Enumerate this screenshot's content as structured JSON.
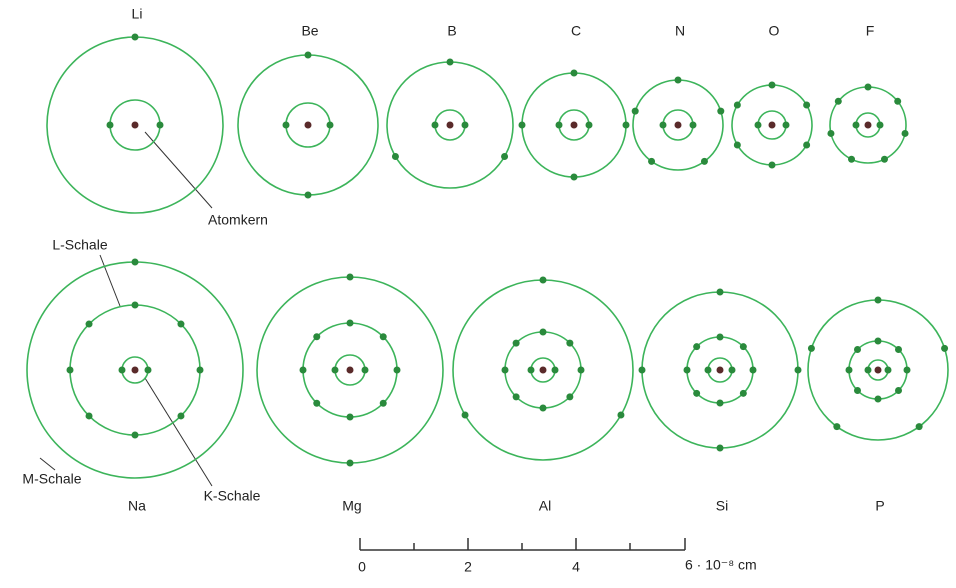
{
  "atoms": [
    {
      "label": "Li",
      "shells": [
        2,
        1
      ]
    },
    {
      "label": "Be",
      "shells": [
        2,
        2
      ]
    },
    {
      "label": "B",
      "shells": [
        2,
        3
      ]
    },
    {
      "label": "C",
      "shells": [
        2,
        4
      ]
    },
    {
      "label": "N",
      "shells": [
        2,
        5
      ]
    },
    {
      "label": "O",
      "shells": [
        2,
        6
      ]
    },
    {
      "label": "F",
      "shells": [
        2,
        7
      ]
    },
    {
      "label": "Na",
      "shells": [
        2,
        8,
        1
      ]
    },
    {
      "label": "Mg",
      "shells": [
        2,
        8,
        2
      ]
    },
    {
      "label": "Al",
      "shells": [
        2,
        8,
        3
      ]
    },
    {
      "label": "Si",
      "shells": [
        2,
        8,
        4
      ]
    },
    {
      "label": "P",
      "shells": [
        2,
        8,
        5
      ]
    }
  ],
  "annotations": {
    "nucleus": "Atomkern",
    "l_shell": "L-Schale",
    "k_shell": "K-Schale",
    "m_shell": "M-Schale"
  },
  "scale": {
    "labels": [
      "0",
      "2",
      "4",
      "6 · 10⁻⁸ cm"
    ]
  }
}
